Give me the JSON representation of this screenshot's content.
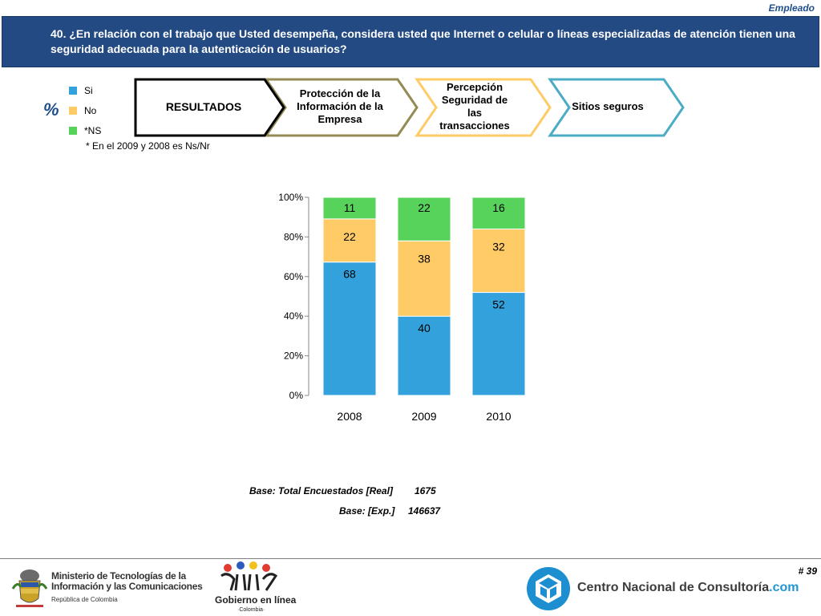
{
  "header": {
    "tag": "Empleado",
    "question": "40. ¿En relación con el trabajo que Usted desempeña, considera usted que Internet o celular o líneas especializadas de atención tienen una seguridad adecuada para la autenticación de usuarios?"
  },
  "percent_symbol": "%",
  "legend": {
    "items": [
      {
        "label": "Si",
        "color": "#33a1dc"
      },
      {
        "label": "No",
        "color": "#fecb66"
      },
      {
        "label": "*NS",
        "color": "#57d25a"
      }
    ],
    "note": "* En el 2009 y 2008 es Ns/Nr"
  },
  "navigation": {
    "steps": [
      {
        "label": "RESULTADOS",
        "color": "#000000"
      },
      {
        "label": "Protección de la Información de la Empresa",
        "color": "#948a54"
      },
      {
        "label": "Percepción Seguridad de las transacciones",
        "color": "#fecb66"
      },
      {
        "label": "Sitios seguros",
        "color": "#4bacc6"
      }
    ]
  },
  "chart_data": {
    "type": "bar",
    "stacked": true,
    "categories": [
      "2008",
      "2009",
      "2010"
    ],
    "series": [
      {
        "name": "Si",
        "values": [
          68,
          40,
          52
        ],
        "color": "#33a1dc"
      },
      {
        "name": "No",
        "values": [
          22,
          38,
          32
        ],
        "color": "#fecb66"
      },
      {
        "name": "*NS",
        "values": [
          11,
          22,
          16
        ],
        "color": "#57d25a"
      }
    ],
    "ylim": [
      0,
      100
    ],
    "yticks": [
      "0%",
      "20%",
      "40%",
      "60%",
      "80%",
      "100%"
    ],
    "grid": false
  },
  "base": {
    "real_label": "Base: Total Encuestados [Real]",
    "real_value": "1675",
    "exp_label": "Base: [Exp.]",
    "exp_value": "146637"
  },
  "footer": {
    "page_number": "# 39",
    "ministry_line1": "Ministerio de Tecnologías de la",
    "ministry_line2": "Información y las Comunicaciones",
    "ministry_line3": "República de Colombia",
    "gel_name": "Gobierno en línea",
    "gel_country": "·Colombia·",
    "cnc_name": "Centro Nacional de Consultoría",
    "cnc_suffix": ".com"
  }
}
